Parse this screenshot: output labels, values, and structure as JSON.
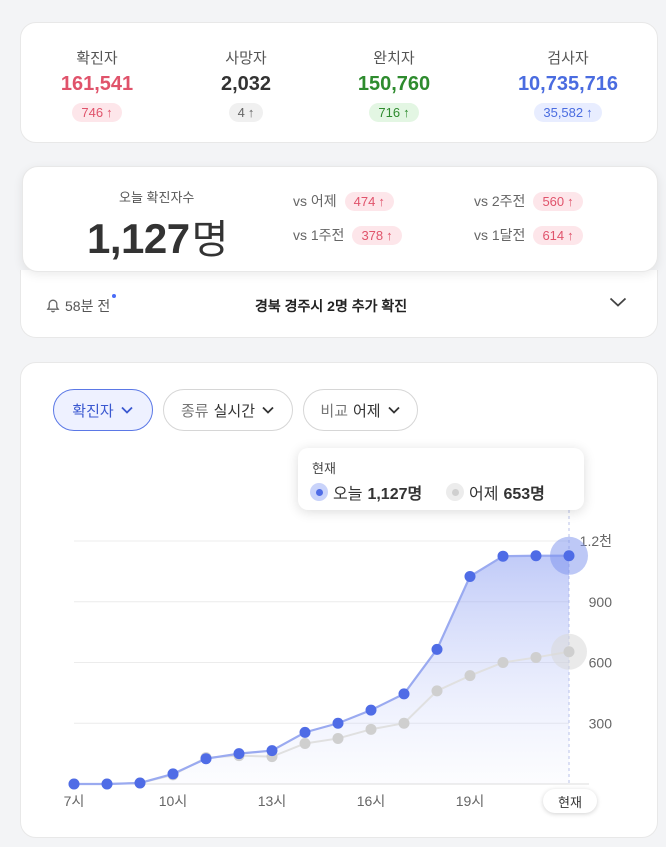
{
  "stats": [
    {
      "label": "확진자",
      "value": "161,541",
      "delta": "746",
      "color": "#e0536b",
      "pill_bg": "#fde6ea"
    },
    {
      "label": "사망자",
      "value": "2,032",
      "delta": "4",
      "color": "#333333",
      "pill_bg": "#f0f0f0"
    },
    {
      "label": "완치자",
      "value": "150,760",
      "delta": "716",
      "color": "#2e8b2e",
      "pill_bg": "#e3f6e3"
    },
    {
      "label": "검사자",
      "value": "10,735,716",
      "delta": "35,582",
      "color": "#4a6ce0",
      "pill_bg": "#e8edff"
    }
  ],
  "today": {
    "label": "오늘 확진자수",
    "count": "1,127",
    "unit": "명",
    "comparisons": [
      {
        "label": "vs 어제",
        "value": "474"
      },
      {
        "label": "vs 1주전",
        "value": "378"
      },
      {
        "label": "vs 2주전",
        "value": "560"
      },
      {
        "label": "vs 1달전",
        "value": "614"
      }
    ]
  },
  "news": {
    "time": "58분 전",
    "text": "경북 경주시 2명 추가 확진"
  },
  "filters": [
    {
      "sub": "",
      "label": "확진자",
      "active": true
    },
    {
      "sub": "종류",
      "label": "실시간",
      "active": false
    },
    {
      "sub": "비교",
      "label": "어제",
      "active": false
    }
  ],
  "tooltip": {
    "title": "현재",
    "today_label": "오늘",
    "today_value": "1,127명",
    "yesterday_label": "어제",
    "yesterday_value": "653명"
  },
  "chart_data": {
    "type": "line",
    "x_tick_labels": [
      "7시",
      "10시",
      "13시",
      "16시",
      "19시",
      "현재"
    ],
    "y_tick_labels": [
      "300",
      "600",
      "900",
      "1.2천"
    ],
    "ylim": [
      0,
      1200
    ],
    "x": [
      7,
      8,
      9,
      10,
      11,
      12,
      13,
      14,
      15,
      16,
      17,
      18,
      19,
      20,
      21,
      22
    ],
    "series": [
      {
        "name": "오늘",
        "color": "#4f6ce6",
        "values": [
          0,
          0,
          5,
          50,
          125,
          150,
          165,
          255,
          300,
          365,
          445,
          665,
          1025,
          1125,
          1127,
          1127
        ]
      },
      {
        "name": "어제",
        "color": "#cfcfcf",
        "values": [
          0,
          0,
          5,
          45,
          130,
          140,
          135,
          200,
          225,
          270,
          300,
          460,
          535,
          600,
          625,
          653
        ]
      }
    ],
    "grid": true
  }
}
